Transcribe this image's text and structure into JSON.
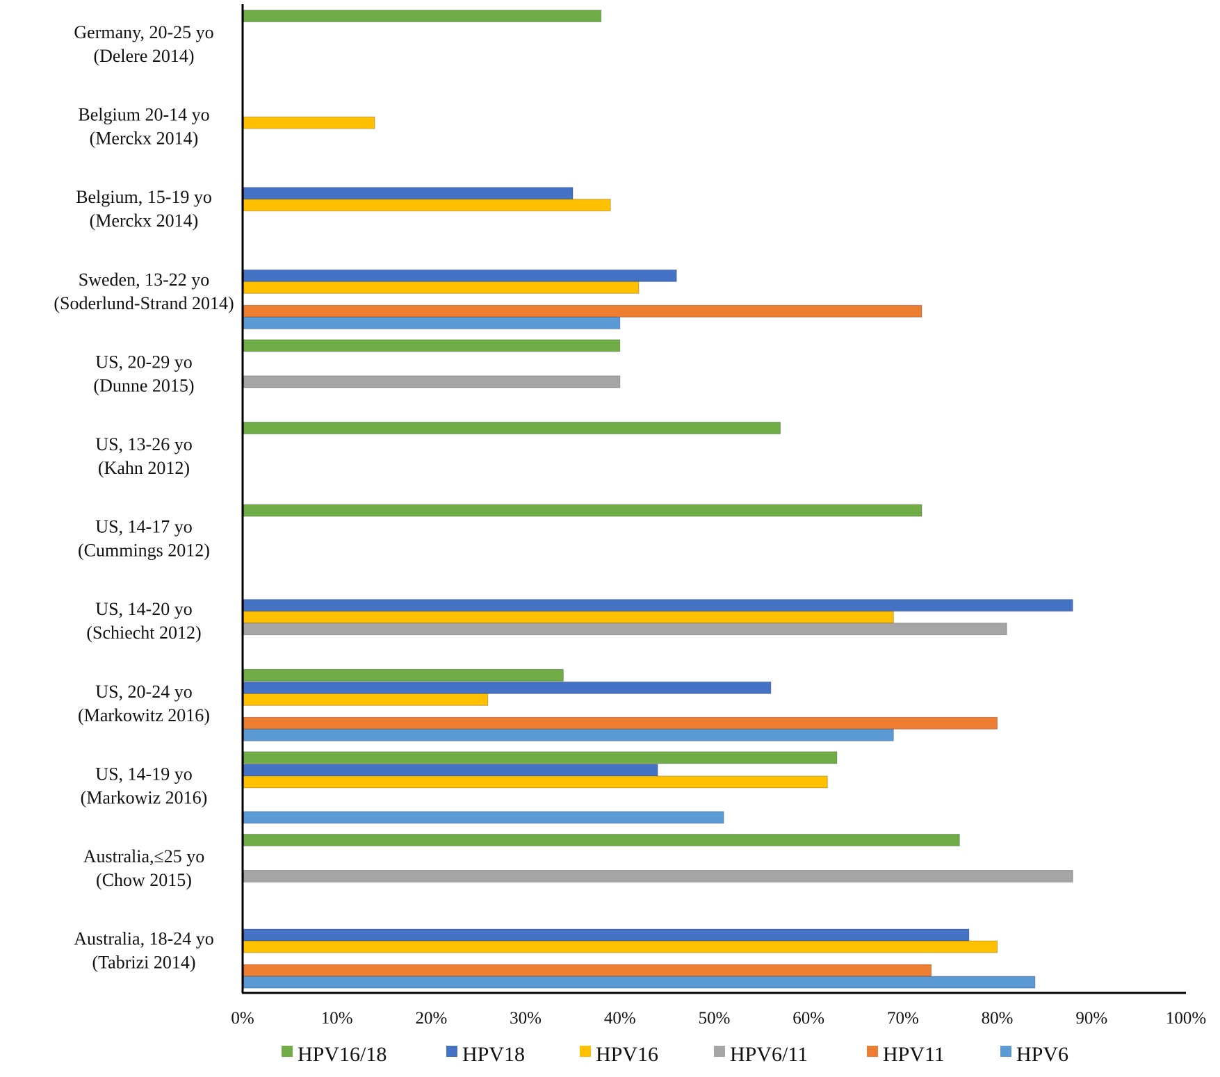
{
  "chart_data": {
    "type": "bar",
    "orientation": "horizontal",
    "title": "",
    "xlabel": "",
    "ylabel": "",
    "xlim": [
      0,
      100
    ],
    "x_ticks": [
      "0%",
      "10%",
      "20%",
      "30%",
      "40%",
      "50%",
      "60%",
      "70%",
      "80%",
      "90%",
      "100%"
    ],
    "grid": false,
    "legend_position": "bottom",
    "categories": [
      [
        "Germany, 20-25 yo",
        "(Delere 2014)"
      ],
      [
        "Belgium 20-14 yo",
        "(Merckx 2014)"
      ],
      [
        "Belgium, 15-19 yo",
        "(Merckx 2014)"
      ],
      [
        "Sweden, 13-22 yo",
        "(Soderlund-Strand 2014)"
      ],
      [
        "US, 20-29 yo",
        "(Dunne 2015)"
      ],
      [
        "US, 13-26 yo",
        "(Kahn 2012)"
      ],
      [
        "US, 14-17 yo",
        "(Cummings 2012)"
      ],
      [
        "US, 14-20 yo",
        "(Schiecht 2012)"
      ],
      [
        "US, 20-24 yo",
        "(Markowitz 2016)"
      ],
      [
        "US, 14-19 yo",
        "(Markowiz 2016)"
      ],
      [
        "Australia,≤25 yo",
        "(Chow 2015)"
      ],
      [
        "Australia, 18-24 yo",
        "(Tabrizi 2014)"
      ]
    ],
    "series": [
      {
        "name": "HPV16/18",
        "color": "#70ad47",
        "values": [
          38,
          null,
          null,
          null,
          40,
          57,
          72,
          null,
          34,
          63,
          76,
          null
        ]
      },
      {
        "name": "HPV18",
        "color": "#4472c4",
        "values": [
          null,
          null,
          35,
          46,
          null,
          null,
          null,
          88,
          56,
          44,
          null,
          77
        ]
      },
      {
        "name": "HPV16",
        "color": "#ffc000",
        "values": [
          null,
          14,
          39,
          42,
          null,
          null,
          null,
          69,
          26,
          62,
          null,
          80
        ]
      },
      {
        "name": "HPV6/11",
        "color": "#a5a5a5",
        "values": [
          null,
          null,
          null,
          null,
          40,
          null,
          null,
          81,
          null,
          null,
          88,
          null
        ]
      },
      {
        "name": "HPV11",
        "color": "#ed7d31",
        "values": [
          null,
          null,
          null,
          72,
          null,
          null,
          null,
          null,
          80,
          null,
          null,
          73
        ]
      },
      {
        "name": "HPV6",
        "color": "#5b9bd5",
        "values": [
          null,
          null,
          null,
          40,
          null,
          null,
          null,
          null,
          69,
          51,
          null,
          84
        ]
      }
    ]
  }
}
